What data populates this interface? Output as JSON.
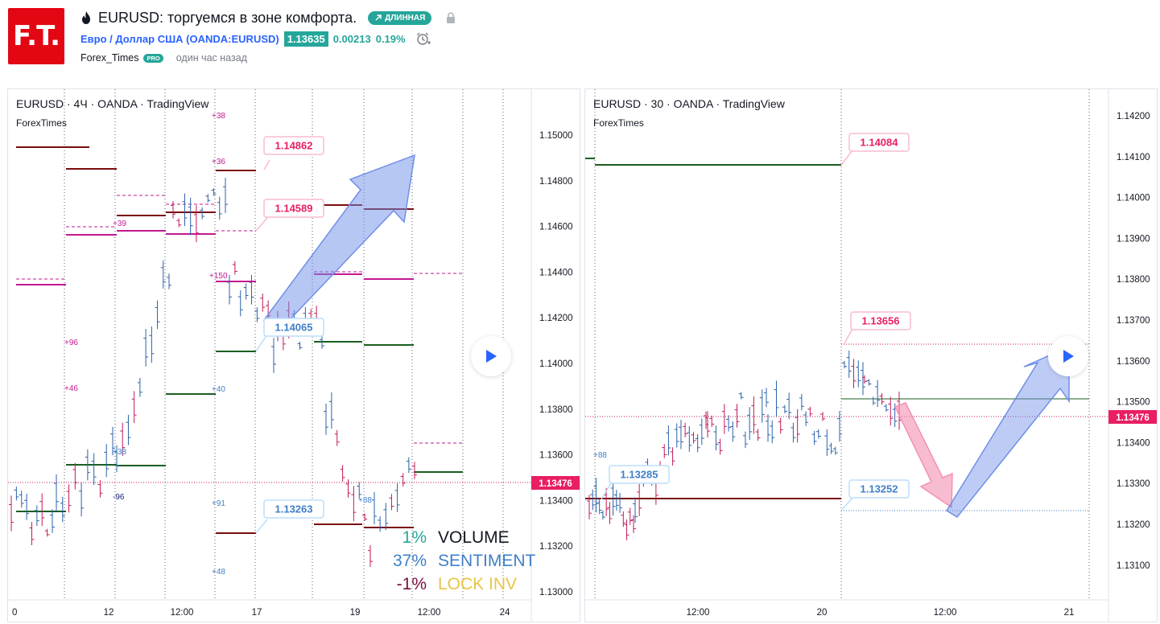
{
  "header": {
    "logo_text": "F.T.",
    "logo_color": "#e30613",
    "title": "EURUSD: торгуемся в зоне комфорта.",
    "badge_label": "ДЛИННАЯ",
    "symbol_name": "Евро / Доллар США (OANDA:EURUSD)",
    "price": "1.13635",
    "change": "0.00213",
    "change_pct": "0.19%",
    "author": "Forex_Times",
    "author_badge": "PRO",
    "time_ago": "один час назад"
  },
  "left_chart": {
    "legend": "EURUSD · 4Ч · OANDA · TradingView",
    "legend_sub": "ForexTimes",
    "y_ticks": [
      "1.15000",
      "1.14800",
      "1.14600",
      "1.14400",
      "1.14200",
      "1.14000",
      "1.13800",
      "1.13600",
      "1.13400",
      "1.13200",
      "1.13000"
    ],
    "x_ticks": [
      "0",
      "12",
      "12:00",
      "17",
      "19",
      "12:00",
      "24"
    ],
    "current_price": "1.13476",
    "callouts": [
      "1.14862",
      "1.14589",
      "1.14065",
      "1.13263"
    ],
    "volume_labels": [
      "+38",
      "+36",
      "+39",
      "+150",
      "+96",
      "+46",
      "+40",
      "+38",
      "-96",
      "+91",
      "+88",
      "+48"
    ],
    "stats": [
      {
        "value": "1%",
        "label": "VOLUME"
      },
      {
        "value": "37%",
        "label": "SENTIMENT"
      },
      {
        "value": "-1%",
        "label": "LOCK INV"
      }
    ]
  },
  "right_chart": {
    "legend": "EURUSD · 30 · OANDA · TradingView",
    "legend_sub": "ForexTimes",
    "y_ticks": [
      "1.14200",
      "1.14100",
      "1.14000",
      "1.13900",
      "1.13800",
      "1.13700",
      "1.13600",
      "1.13500",
      "1.13400",
      "1.13300",
      "1.13200",
      "1.13100"
    ],
    "x_ticks": [
      "12:00",
      "20",
      "12:00",
      "21"
    ],
    "current_price": "1.13476",
    "callouts": [
      "1.14084",
      "1.13656",
      "1.13285",
      "1.13252"
    ],
    "volume_labels": [
      "+88"
    ]
  },
  "colors": {
    "up": "#26a69a",
    "bull_candle": "#2962a8",
    "bear_candle": "#c2185b",
    "price_tag": "#e91e63",
    "blue_arrow": "#6f8fe8",
    "pink_arrow": "#f48fb1",
    "dark_red_level": "#7a0c0c",
    "green_level": "#1b5e20",
    "magenta_level": "#c2188f"
  }
}
